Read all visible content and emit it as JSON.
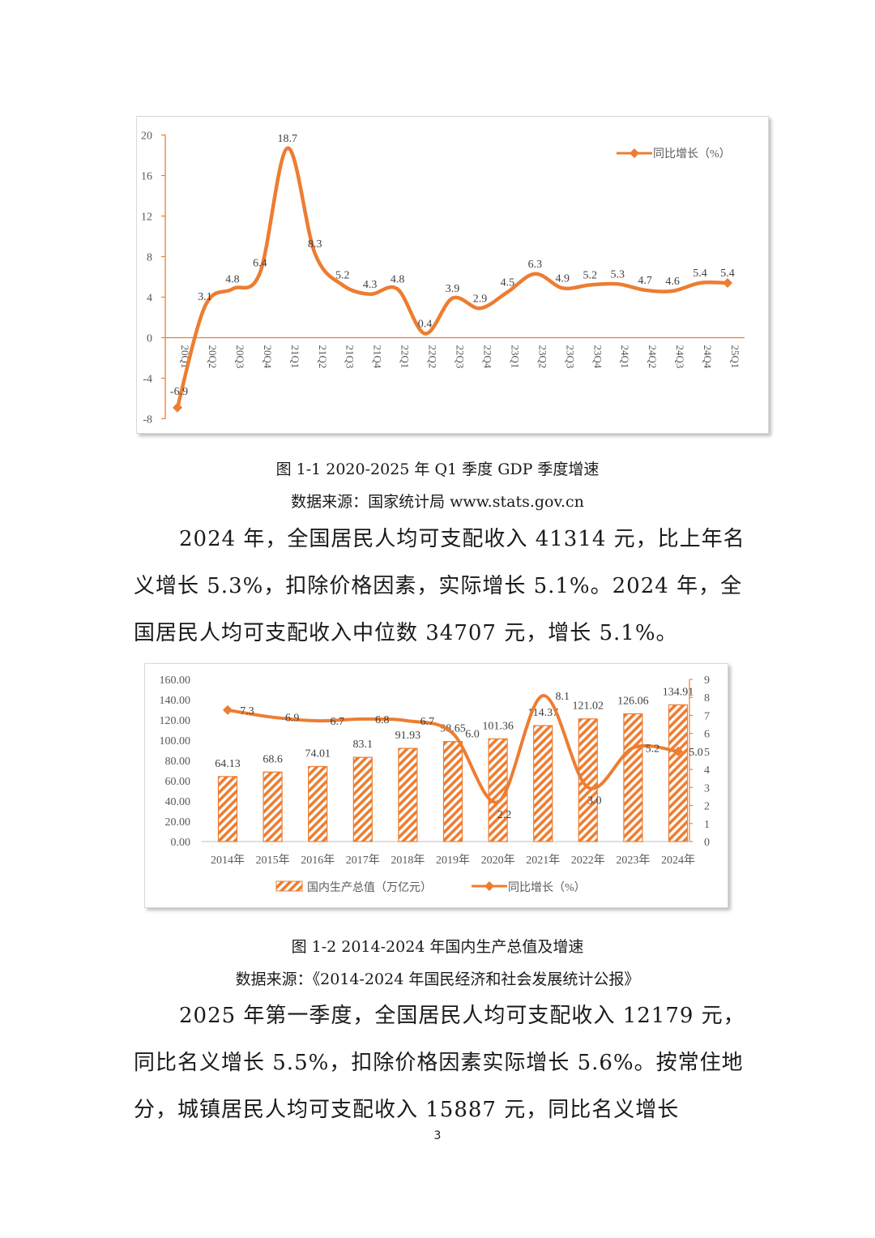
{
  "colors": {
    "accent": "#ED7D31",
    "axis_text": "#595959",
    "label_text": "#404040"
  },
  "chart_data": [
    {
      "type": "line",
      "categories": [
        "20Q1",
        "20Q2",
        "20Q3",
        "20Q4",
        "21Q1",
        "21Q2",
        "21Q3",
        "21Q4",
        "22Q1",
        "22Q2",
        "22Q3",
        "22Q4",
        "23Q1",
        "23Q2",
        "23Q3",
        "23Q4",
        "24Q1",
        "24Q2",
        "24Q3",
        "24Q4",
        "25Q1"
      ],
      "series": [
        {
          "name": "同比增长（%）",
          "values": [
            -6.9,
            3.1,
            4.8,
            6.4,
            18.7,
            8.3,
            5.2,
            4.3,
            4.8,
            0.4,
            3.9,
            2.9,
            4.5,
            6.3,
            4.9,
            5.2,
            5.3,
            4.7,
            4.6,
            5.4,
            5.4
          ]
        }
      ],
      "yticks": [
        "20",
        "16",
        "12",
        "8",
        "4",
        "0",
        "-4",
        "-8"
      ],
      "ylim": [
        -8,
        20
      ],
      "legend": "top-right"
    },
    {
      "type": "bar",
      "categories": [
        "2014年",
        "2015年",
        "2016年",
        "2017年",
        "2018年",
        "2019年",
        "2020年",
        "2021年",
        "2022年",
        "2023年",
        "2024年"
      ],
      "series": [
        {
          "name": "国内生产总值（万亿元）",
          "axis": "left",
          "values": [
            64.13,
            68.6,
            74.01,
            83.1,
            91.93,
            98.65,
            101.36,
            114.37,
            121.02,
            126.06,
            134.91
          ]
        },
        {
          "name": "同比增长（%）",
          "axis": "right",
          "type": "line",
          "values": [
            7.3,
            6.9,
            6.7,
            6.8,
            6.7,
            6.0,
            2.2,
            8.1,
            3.0,
            5.2,
            5.0
          ]
        }
      ],
      "value_labels": [
        "64.13",
        "68.6",
        "74.01",
        "83.1",
        "91.93",
        "98.65",
        "101.36",
        "114.37",
        "121.02",
        "126.06",
        "134.91"
      ],
      "growth_labels": [
        "7.3",
        "6.9",
        "6.7",
        "6.8",
        "6.7",
        "6.0",
        "2.2",
        "8.1",
        "3.0",
        "5.2",
        "5.0"
      ],
      "yticks_left": [
        "160.00",
        "140.00",
        "120.00",
        "100.00",
        "80.00",
        "60.00",
        "40.00",
        "20.00",
        "0.00"
      ],
      "yticks_right": [
        "9",
        "8",
        "7",
        "6",
        "5",
        "4",
        "3",
        "2",
        "1",
        "0"
      ],
      "ylim_left": [
        0,
        160
      ],
      "ylim_right": [
        0,
        9
      ],
      "legend": "bottom"
    }
  ],
  "captions": {
    "fig1": "图  1-1 2020-2025 年 Q1 季度 GDP 季度增速",
    "fig1_source": "数据来源：国家统计局 www.stats.gov.cn",
    "fig2": "图  1-2 2014-2024 年国内生产总值及增速",
    "fig2_source": "数据来源：《2014-2024 年国民经济和社会发展统计公报》"
  },
  "paragraphs": {
    "p1": "2024 年，全国居民人均可支配收入 41314 元，比上年名义增长 5.3%，扣除价格因素，实际增长 5.1%。2024 年，全国居民人均可支配收入中位数 34707 元，增长 5.1%。",
    "p2": "2025 年第一季度，全国居民人均可支配收入 12179 元，同比名义增长 5.5%，扣除价格因素实际增长 5.6%。按常住地分，城镇居民人均可支配收入 15887 元，同比名义增长"
  },
  "page_number": "3"
}
